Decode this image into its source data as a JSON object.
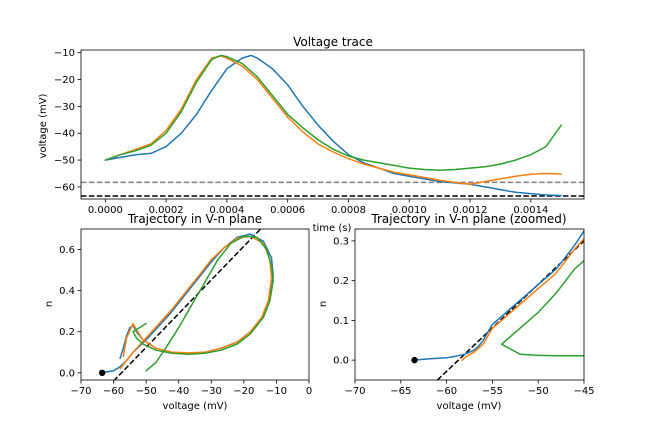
{
  "chart_data": [
    {
      "type": "line",
      "title": "Voltage trace",
      "xlabel": "time (s)",
      "ylabel": "voltage (mV)",
      "xlim": [
        -8e-05,
        0.001575
      ],
      "ylim": [
        -64.5,
        -9
      ],
      "xticks": [
        0,
        0.0002,
        0.0004,
        0.0006,
        0.0008,
        0.001,
        0.0012,
        0.0014
      ],
      "xtick_labels": [
        "0.0000",
        "0.0002",
        "0.0004",
        "0.0006",
        "0.0008",
        "0.0010",
        "0.0012",
        "0.0014"
      ],
      "yticks": [
        -10,
        -20,
        -30,
        -40,
        -50,
        -60
      ],
      "ytick_labels": [
        "−10",
        "−20",
        "−30",
        "−40",
        "−50",
        "−60"
      ],
      "hlines": [
        {
          "y": -58.3,
          "color": "#808080",
          "style": "dashed"
        },
        {
          "y": -63.4,
          "color": "#000000",
          "style": "dashed"
        }
      ],
      "series": [
        {
          "color": "#1f77b4",
          "x": [
            0,
            5e-05,
            0.0001,
            0.00015,
            0.0002,
            0.00025,
            0.0003,
            0.00035,
            0.0004,
            0.00045,
            0.00048,
            0.0005,
            0.00055,
            0.0006,
            0.00065,
            0.0007,
            0.00075,
            0.0008,
            0.00085,
            0.0009,
            0.00095,
            0.001,
            0.00105,
            0.0011,
            0.00115,
            0.0012,
            0.00125,
            0.0013,
            0.00135,
            0.0014,
            0.00145,
            0.0015
          ],
          "y": [
            -50,
            -49,
            -48,
            -47.5,
            -45,
            -40,
            -33,
            -24,
            -16,
            -12,
            -11,
            -12,
            -16,
            -22,
            -30,
            -37,
            -43,
            -48,
            -51,
            -53,
            -55,
            -56,
            -57,
            -58,
            -58.5,
            -59,
            -60,
            -61,
            -62,
            -62.5,
            -63,
            -63.2
          ]
        },
        {
          "color": "#ff7f0e",
          "x": [
            0,
            5e-05,
            0.0001,
            0.00015,
            0.0002,
            0.00025,
            0.0003,
            0.00035,
            0.00038,
            0.0004,
            0.00045,
            0.0005,
            0.00055,
            0.0006,
            0.00065,
            0.0007,
            0.00075,
            0.0008,
            0.00085,
            0.0009,
            0.00095,
            0.001,
            0.00105,
            0.0011,
            0.00115,
            0.0012,
            0.00125,
            0.0013,
            0.00135,
            0.0014,
            0.00145,
            0.0015
          ],
          "y": [
            -50,
            -48,
            -46,
            -44,
            -39,
            -31,
            -20,
            -12,
            -11.2,
            -12,
            -15,
            -20,
            -27,
            -34,
            -39.5,
            -44,
            -47,
            -49.5,
            -51.5,
            -53,
            -54.5,
            -55.5,
            -56.5,
            -57.5,
            -58.3,
            -59,
            -58,
            -57,
            -56,
            -55.3,
            -55,
            -55.2
          ]
        },
        {
          "color": "#2ca02c",
          "x": [
            0,
            5e-05,
            0.0001,
            0.00015,
            0.0002,
            0.00025,
            0.0003,
            0.00035,
            0.00038,
            0.0004,
            0.00045,
            0.0005,
            0.00055,
            0.0006,
            0.00065,
            0.0007,
            0.00075,
            0.0008,
            0.00085,
            0.0009,
            0.00095,
            0.001,
            0.00105,
            0.0011,
            0.00115,
            0.0012,
            0.00125,
            0.0013,
            0.00135,
            0.0014,
            0.00145,
            0.0015
          ],
          "y": [
            -50,
            -48,
            -46.5,
            -44.5,
            -40,
            -32,
            -21,
            -12.5,
            -11,
            -11.5,
            -14,
            -19,
            -26,
            -33,
            -38,
            -42.5,
            -46,
            -48.5,
            -50,
            -51,
            -52,
            -53,
            -53.5,
            -53.8,
            -53.5,
            -53,
            -52.5,
            -51.5,
            -50,
            -48,
            -45,
            -37
          ]
        }
      ]
    },
    {
      "type": "line",
      "title": "Trajectory in V-n plane",
      "xlabel": "voltage (mV)",
      "ylabel": "n",
      "xlim": [
        -70,
        0
      ],
      "ylim": [
        -0.035,
        0.7
      ],
      "xticks": [
        -70,
        -60,
        -50,
        -40,
        -30,
        -20,
        -10,
        0
      ],
      "xtick_labels": [
        "−70",
        "−60",
        "−50",
        "−40",
        "−30",
        "−20",
        "−10",
        "0"
      ],
      "yticks": [
        0,
        0.2,
        0.4,
        0.6
      ],
      "ytick_labels": [
        "0.0",
        "0.2",
        "0.4",
        "0.6"
      ],
      "reference_line": {
        "style": "dashed",
        "color": "#000000",
        "x": [
          -60,
          -10
        ],
        "y": [
          -0.04,
          0.78
        ]
      },
      "marker": {
        "x": -63.5,
        "y": 0.0,
        "color": "#000000"
      },
      "series": [
        {
          "color": "#1f77b4",
          "x": [
            -63.5,
            -60,
            -58,
            -56,
            -54,
            -50,
            -46,
            -42,
            -38,
            -34,
            -30,
            -26,
            -22,
            -18,
            -14,
            -11.5,
            -11,
            -12,
            -14,
            -18,
            -22,
            -27,
            -32,
            -37,
            -42,
            -47,
            -51,
            -53,
            -54,
            -55,
            -56,
            -57,
            -58
          ],
          "y": [
            0.0,
            0.01,
            0.03,
            0.06,
            0.1,
            0.16,
            0.23,
            0.3,
            0.38,
            0.46,
            0.54,
            0.61,
            0.66,
            0.675,
            0.64,
            0.56,
            0.47,
            0.36,
            0.28,
            0.2,
            0.15,
            0.12,
            0.1,
            0.095,
            0.1,
            0.12,
            0.16,
            0.2,
            0.23,
            0.22,
            0.18,
            0.12,
            0.07
          ]
        },
        {
          "color": "#ff7f0e",
          "x": [
            -58,
            -56,
            -54,
            -50,
            -46,
            -42,
            -38,
            -34,
            -30,
            -26,
            -22,
            -18,
            -14,
            -12,
            -11.5,
            -12.5,
            -14.5,
            -18,
            -22,
            -27,
            -32,
            -37,
            -42,
            -47,
            -51,
            -53,
            -54,
            -56,
            -57
          ],
          "y": [
            0.02,
            0.06,
            0.1,
            0.17,
            0.24,
            0.31,
            0.39,
            0.47,
            0.55,
            0.61,
            0.655,
            0.665,
            0.63,
            0.55,
            0.46,
            0.35,
            0.27,
            0.2,
            0.15,
            0.12,
            0.1,
            0.097,
            0.1,
            0.12,
            0.16,
            0.21,
            0.24,
            0.17,
            0.08
          ]
        },
        {
          "color": "#2ca02c",
          "x": [
            -50,
            -47,
            -44,
            -40,
            -36,
            -32,
            -28,
            -24,
            -20,
            -16,
            -13,
            -11.5,
            -11,
            -12,
            -14,
            -18,
            -22,
            -27,
            -32,
            -37,
            -42,
            -47,
            -51,
            -53,
            -54,
            -52,
            -50
          ],
          "y": [
            0.01,
            0.05,
            0.12,
            0.22,
            0.33,
            0.44,
            0.55,
            0.63,
            0.665,
            0.66,
            0.6,
            0.52,
            0.45,
            0.35,
            0.27,
            0.19,
            0.14,
            0.11,
            0.095,
            0.09,
            0.095,
            0.11,
            0.14,
            0.17,
            0.2,
            0.22,
            0.24
          ]
        }
      ]
    },
    {
      "type": "line",
      "title": "Trajectory in V-n plane (zoomed)",
      "xlabel": "voltage (mV)",
      "ylabel": "n",
      "xlim": [
        -70,
        -45
      ],
      "ylim": [
        -0.05,
        0.33
      ],
      "xticks": [
        -70,
        -65,
        -60,
        -55,
        -50,
        -45
      ],
      "xtick_labels": [
        "−70",
        "−65",
        "−60",
        "−55",
        "−50",
        "−45"
      ],
      "yticks": [
        0,
        0.1,
        0.2,
        0.3
      ],
      "ytick_labels": [
        "0.0",
        "0.1",
        "0.2",
        "0.3"
      ],
      "reference_line": {
        "style": "dashed",
        "color": "#000000",
        "x": [
          -61,
          -45
        ],
        "y": [
          -0.05,
          0.3
        ]
      },
      "marker": {
        "x": -63.5,
        "y": 0.0,
        "color": "#000000"
      },
      "series": [
        {
          "color": "#1f77b4",
          "x": [
            -63.5,
            -62,
            -60,
            -59,
            -58,
            -57.5,
            -57,
            -56.5,
            -56,
            -55.5,
            -55,
            -54,
            -53,
            -52,
            -51,
            -50,
            -49,
            -48,
            -47,
            -46,
            -45
          ],
          "y": [
            0.0,
            0.003,
            0.006,
            0.01,
            0.015,
            0.02,
            0.025,
            0.035,
            0.05,
            0.07,
            0.09,
            0.11,
            0.13,
            0.15,
            0.17,
            0.19,
            0.21,
            0.23,
            0.26,
            0.29,
            0.325
          ]
        },
        {
          "color": "#ff7f0e",
          "x": [
            -58.3,
            -57.8,
            -57,
            -56,
            -55.5,
            -55,
            -54,
            -53,
            -52,
            -51,
            -50,
            -49,
            -48,
            -47,
            -46,
            -45
          ],
          "y": [
            0.0,
            0.01,
            0.02,
            0.04,
            0.06,
            0.08,
            0.1,
            0.12,
            0.14,
            0.16,
            0.18,
            0.2,
            0.22,
            0.25,
            0.28,
            0.305
          ]
        },
        {
          "color": "#2ca02c",
          "x": [
            -50,
            -52,
            -54,
            -53,
            -52,
            -51,
            -50,
            -49,
            -48,
            -47,
            -46,
            -45
          ],
          "y": [
            0.012,
            0.015,
            0.04,
            0.06,
            0.08,
            0.1,
            0.12,
            0.145,
            0.17,
            0.2,
            0.23,
            0.25
          ]
        },
        {
          "color": "#2ca02c",
          "x": [
            -50,
            -48,
            -46,
            -45
          ],
          "y": [
            0.012,
            0.011,
            0.011,
            0.011
          ]
        }
      ]
    }
  ]
}
